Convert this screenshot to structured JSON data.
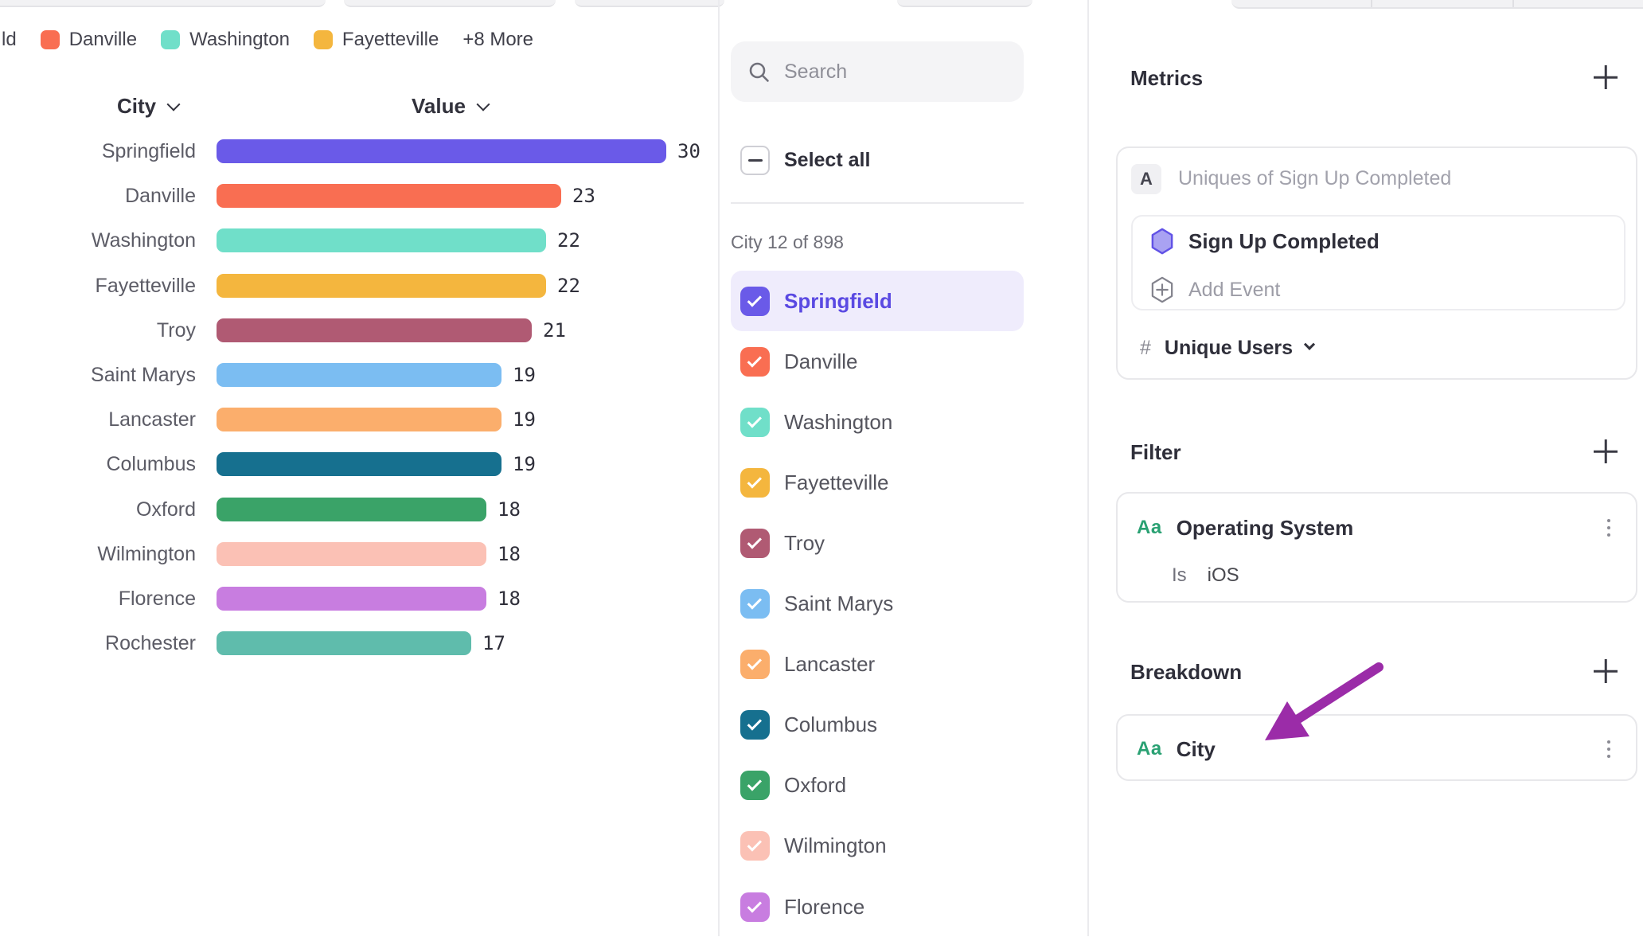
{
  "legend": {
    "partial_first_label": "ld",
    "items": [
      {
        "label": "Danville",
        "color": "#F96E52"
      },
      {
        "label": "Washington",
        "color": "#70DFC9"
      },
      {
        "label": "Fayetteville",
        "color": "#F4B63E"
      }
    ],
    "more_label": "+8 More"
  },
  "chart_data": {
    "type": "bar",
    "orientation": "horizontal",
    "column_headers": {
      "category": "City",
      "value": "Value"
    },
    "categories": [
      "Springfield",
      "Danville",
      "Washington",
      "Fayetteville",
      "Troy",
      "Saint Marys",
      "Lancaster",
      "Columbus",
      "Oxford",
      "Wilmington",
      "Florence",
      "Rochester"
    ],
    "values": [
      30,
      23,
      22,
      22,
      21,
      19,
      19,
      19,
      18,
      18,
      18,
      17
    ],
    "colors": [
      "#6A5AE8",
      "#F96E52",
      "#70DFC9",
      "#F4B63E",
      "#B05A73",
      "#7BBDF2",
      "#FBAE6C",
      "#16708F",
      "#3AA368",
      "#FBC1B5",
      "#C87DE0",
      "#5FBCAC"
    ],
    "xlim": [
      0,
      30
    ],
    "grid": false,
    "legend_position": "top"
  },
  "list_panel": {
    "search_placeholder": "Search",
    "select_all_label": "Select all",
    "count_label": "City 12 of 898",
    "items": [
      {
        "label": "Springfield",
        "color": "#6A5AE8",
        "checked": true,
        "selected": true
      },
      {
        "label": "Danville",
        "color": "#F96E52",
        "checked": true,
        "selected": false
      },
      {
        "label": "Washington",
        "color": "#70DFC9",
        "checked": true,
        "selected": false
      },
      {
        "label": "Fayetteville",
        "color": "#F4B63E",
        "checked": true,
        "selected": false
      },
      {
        "label": "Troy",
        "color": "#B05A73",
        "checked": true,
        "selected": false
      },
      {
        "label": "Saint Marys",
        "color": "#7BBDF2",
        "checked": true,
        "selected": false
      },
      {
        "label": "Lancaster",
        "color": "#FBAE6C",
        "checked": true,
        "selected": false
      },
      {
        "label": "Columbus",
        "color": "#16708F",
        "checked": true,
        "selected": false
      },
      {
        "label": "Oxford",
        "color": "#3AA368",
        "checked": true,
        "selected": false
      },
      {
        "label": "Wilmington",
        "color": "#FBC1B5",
        "checked": true,
        "selected": false
      },
      {
        "label": "Florence",
        "color": "#C87DE0",
        "checked": true,
        "selected": false
      }
    ]
  },
  "metrics_panel": {
    "section_title": "Metrics",
    "formula_badge": "A",
    "formula_text": "Uniques of Sign Up Completed",
    "event_name": "Sign Up Completed",
    "add_event_label": "Add Event",
    "aggregation_prefix": "#",
    "aggregation_label": "Unique Users",
    "event_icon_fill": "#A9A2F2",
    "event_icon_stroke": "#6152E6"
  },
  "filter_panel": {
    "section_title": "Filter",
    "type_icon": "Aa",
    "property": "Operating System",
    "operator": "Is",
    "value": "iOS"
  },
  "breakdown_panel": {
    "section_title": "Breakdown",
    "type_icon": "Aa",
    "property": "City"
  },
  "annotation": {
    "arrow_color": "#9B2CA8"
  }
}
